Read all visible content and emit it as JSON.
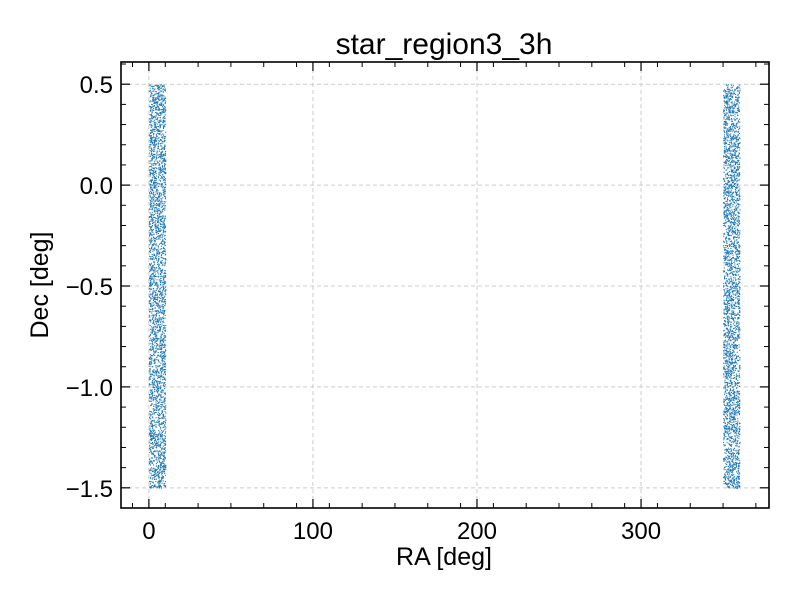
{
  "chart_data": {
    "type": "scatter",
    "title": "star_region3_3h",
    "xlabel": "RA [deg]",
    "ylabel": "Dec [deg]",
    "xlim": [
      -17,
      378
    ],
    "ylim": [
      -1.6,
      0.61
    ],
    "xticks": [
      0,
      100,
      200,
      300
    ],
    "xtick_labels": [
      "0",
      "100",
      "200",
      "300"
    ],
    "yticks": [
      0.5,
      0.0,
      -0.5,
      -1.0,
      -1.5
    ],
    "ytick_labels": [
      "0.5",
      "0.0",
      "−0.5",
      "−1.0",
      "−1.5"
    ],
    "grid": true,
    "series": [
      {
        "color": "#1f77b4",
        "bands": [
          {
            "ra_min": 0.0,
            "ra_max": 10.0,
            "dec_min": -1.5,
            "dec_max": 0.5
          },
          {
            "ra_min": 350.0,
            "ra_max": 360.0,
            "dec_min": -1.5,
            "dec_max": 0.5
          }
        ],
        "points_per_band": 3000
      }
    ],
    "colors": {
      "points": "#1f77b4",
      "grid": "#cccccc",
      "axes": "#000000"
    }
  }
}
